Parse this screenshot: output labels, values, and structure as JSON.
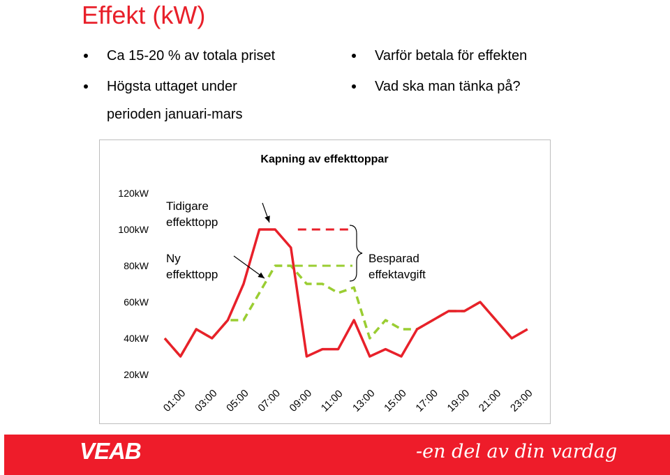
{
  "title": "Effekt (kW)",
  "bullets_left": [
    {
      "text": "Ca 15-20 % av totala priset"
    },
    {
      "text": "Högsta uttaget under",
      "continuation": "perioden januari-mars"
    }
  ],
  "bullets_right": [
    {
      "text": "Varför betala för effekten"
    },
    {
      "text": "Vad ska man tänka på?"
    }
  ],
  "chart_data": {
    "type": "line",
    "title": "Kapning av effekttoppar",
    "xlabel": "",
    "ylabel": "",
    "y_tick_labels": [
      "120kW",
      "100kW",
      "80kW",
      "60kW",
      "40kW",
      "20kW"
    ],
    "y_tick_values": [
      120,
      100,
      80,
      60,
      40,
      20
    ],
    "ylim": [
      20,
      120
    ],
    "x_tick_labels": [
      "01:00",
      "03:00",
      "05:00",
      "07:00",
      "09:00",
      "11:00",
      "13:00",
      "15:00",
      "17:00",
      "19:00",
      "21:00",
      "23:00"
    ],
    "x": [
      1,
      2,
      3,
      4,
      5,
      6,
      7,
      8,
      9,
      10,
      11,
      12,
      13,
      14,
      15,
      16,
      17,
      18,
      19,
      20,
      21,
      22,
      23,
      24
    ],
    "series": [
      {
        "color": "#e8202a",
        "style": "solid",
        "values": [
          40,
          30,
          45,
          40,
          50,
          70,
          100,
          100,
          90,
          30,
          34,
          34,
          50,
          30,
          34,
          30,
          45,
          50,
          55,
          55,
          60,
          50,
          40,
          45
        ]
      },
      {
        "color": "#9acd32",
        "style": "dashed",
        "values": [
          40,
          30,
          45,
          40,
          50,
          50,
          65,
          80,
          80,
          70,
          70,
          65,
          68,
          40,
          50,
          45,
          45,
          50,
          55,
          55,
          60,
          50,
          40,
          45
        ]
      }
    ],
    "annotations": {
      "old_peak": "Tidigare effekttopp",
      "new_peak": "Ny effekttopp",
      "saved": "Besparad effektavgift"
    },
    "legend": "none",
    "grid": false
  },
  "footer": {
    "logo": "VEAB",
    "tagline": "-en del av din vardag",
    "background": "#ee1c2a"
  }
}
